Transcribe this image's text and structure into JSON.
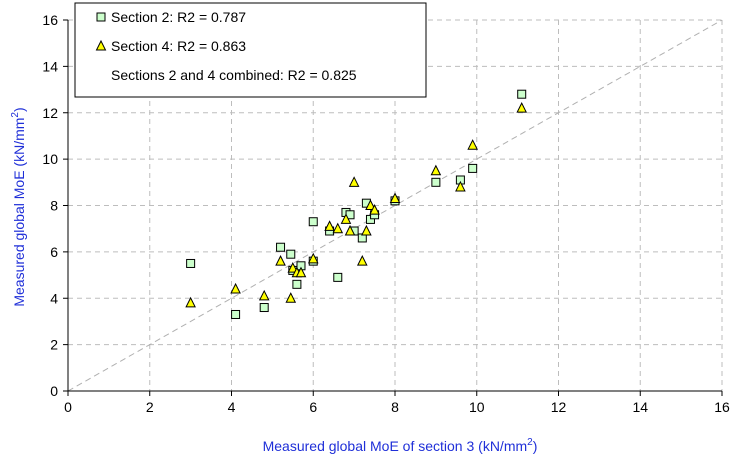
{
  "chart_data": {
    "type": "scatter",
    "title": "",
    "xlabel": "Measured global MoE of section 3 (kN/mm",
    "xlabel_sup": "2",
    "xlabel_end": ")",
    "ylabel": "Measured global MoE (kN/mm",
    "ylabel_sup": "2",
    "ylabel_end": ")",
    "xlim": [
      0,
      16
    ],
    "ylim": [
      0,
      16
    ],
    "xticks": [
      0,
      2,
      4,
      6,
      8,
      10,
      12,
      14,
      16
    ],
    "yticks": [
      0,
      2,
      4,
      6,
      8,
      10,
      12,
      14,
      16
    ],
    "grid": true,
    "legend_position": "top-left",
    "reference_line": {
      "x": [
        0,
        16
      ],
      "y": [
        0,
        16
      ],
      "style": "dashed",
      "color": "#b0b0b0"
    },
    "legend": [
      {
        "marker": "square",
        "text": "Section 2: R2 = 0.787"
      },
      {
        "marker": "triangle",
        "text": "Section 4: R2 = 0.863"
      },
      {
        "marker": "none",
        "text": "Sections 2 and 4 combined: R2 = 0.825"
      }
    ],
    "series": [
      {
        "marker": "square",
        "color": "#ccffcc",
        "stroke": "#000000",
        "points": [
          [
            3.0,
            5.5
          ],
          [
            4.1,
            3.3
          ],
          [
            4.8,
            3.6
          ],
          [
            5.2,
            6.2
          ],
          [
            5.45,
            5.9
          ],
          [
            5.5,
            5.2
          ],
          [
            5.6,
            4.6
          ],
          [
            5.7,
            5.4
          ],
          [
            6.0,
            5.6
          ],
          [
            6.0,
            7.3
          ],
          [
            6.4,
            6.9
          ],
          [
            6.6,
            4.9
          ],
          [
            6.8,
            7.7
          ],
          [
            6.9,
            7.6
          ],
          [
            7.0,
            6.9
          ],
          [
            7.2,
            6.6
          ],
          [
            7.3,
            8.1
          ],
          [
            7.4,
            7.4
          ],
          [
            7.5,
            7.6
          ],
          [
            8.0,
            8.2
          ],
          [
            9.0,
            9.0
          ],
          [
            9.6,
            9.1
          ],
          [
            9.9,
            9.6
          ],
          [
            11.1,
            12.8
          ]
        ]
      },
      {
        "marker": "triangle",
        "color": "#ffff00",
        "stroke": "#000000",
        "points": [
          [
            3.0,
            3.8
          ],
          [
            4.1,
            4.4
          ],
          [
            4.8,
            4.1
          ],
          [
            5.2,
            5.6
          ],
          [
            5.45,
            4.0
          ],
          [
            5.5,
            5.3
          ],
          [
            5.6,
            5.1
          ],
          [
            5.7,
            5.1
          ],
          [
            6.0,
            5.7
          ],
          [
            6.4,
            7.1
          ],
          [
            6.6,
            7.0
          ],
          [
            6.8,
            7.4
          ],
          [
            6.9,
            6.9
          ],
          [
            7.0,
            9.0
          ],
          [
            7.2,
            5.6
          ],
          [
            7.3,
            6.9
          ],
          [
            7.4,
            8.0
          ],
          [
            7.5,
            7.8
          ],
          [
            8.0,
            8.3
          ],
          [
            9.0,
            9.5
          ],
          [
            9.6,
            8.8
          ],
          [
            9.9,
            10.6
          ],
          [
            11.1,
            12.2
          ]
        ]
      }
    ]
  }
}
